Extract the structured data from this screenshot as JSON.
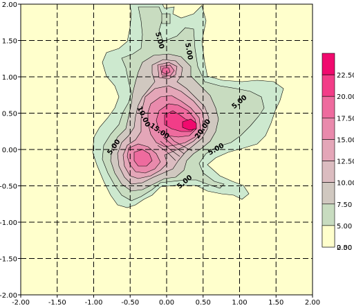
{
  "chart_data": {
    "type": "contour",
    "title": "",
    "xlabel": "",
    "ylabel": "",
    "xlim": [
      -2.0,
      2.0
    ],
    "ylim": [
      -2.0,
      2.0
    ],
    "grid": true,
    "x_ticks": [
      "-2.00",
      "-1.50",
      "-1.00",
      "-0.50",
      "0.00",
      "0.50",
      "1.00",
      "1.50",
      "2.00"
    ],
    "y_ticks": [
      "2.00",
      "1.50",
      "1.00",
      "0.50",
      "0.00",
      "-0.50",
      "-1.00",
      "-1.50",
      "-2.00"
    ],
    "legend_placement": "right",
    "levels": [
      {
        "label": "22.50",
        "color": "#f00a6e"
      },
      {
        "label": "20.00",
        "color": "#f23d88"
      },
      {
        "label": "17.50",
        "color": "#ee6b9e"
      },
      {
        "label": "15.00",
        "color": "#e98aac"
      },
      {
        "label": "12.50",
        "color": "#e4a6b8"
      },
      {
        "label": "10.00",
        "color": "#dbbcc0"
      },
      {
        "label": "7.50",
        "color": "#d0c8c0"
      },
      {
        "label": "5.00",
        "color": "#c8dcc0"
      },
      {
        "label": "2.50",
        "color": "#cde9cf"
      },
      {
        "label": "0.00",
        "color": "#ffffcc"
      }
    ],
    "contour_labels": [
      {
        "text": "5.00",
        "x": -0.1,
        "y": 1.5,
        "angle": 75
      },
      {
        "text": "5.00",
        "x": 0.3,
        "y": 1.35,
        "angle": 80
      },
      {
        "text": "5.00",
        "x": 1.0,
        "y": 0.65,
        "angle": -40
      },
      {
        "text": "10.00",
        "x": -0.32,
        "y": 0.45,
        "angle": 65
      },
      {
        "text": "15.00",
        "x": -0.1,
        "y": 0.25,
        "angle": 35
      },
      {
        "text": "20.00",
        "x": 0.5,
        "y": 0.28,
        "angle": -55
      },
      {
        "text": "5.00",
        "x": -0.72,
        "y": 0.03,
        "angle": -55
      },
      {
        "text": "5.00",
        "x": 0.68,
        "y": 0.0,
        "angle": -30
      },
      {
        "text": "5.00",
        "x": 0.25,
        "y": -0.45,
        "angle": -40
      }
    ]
  }
}
